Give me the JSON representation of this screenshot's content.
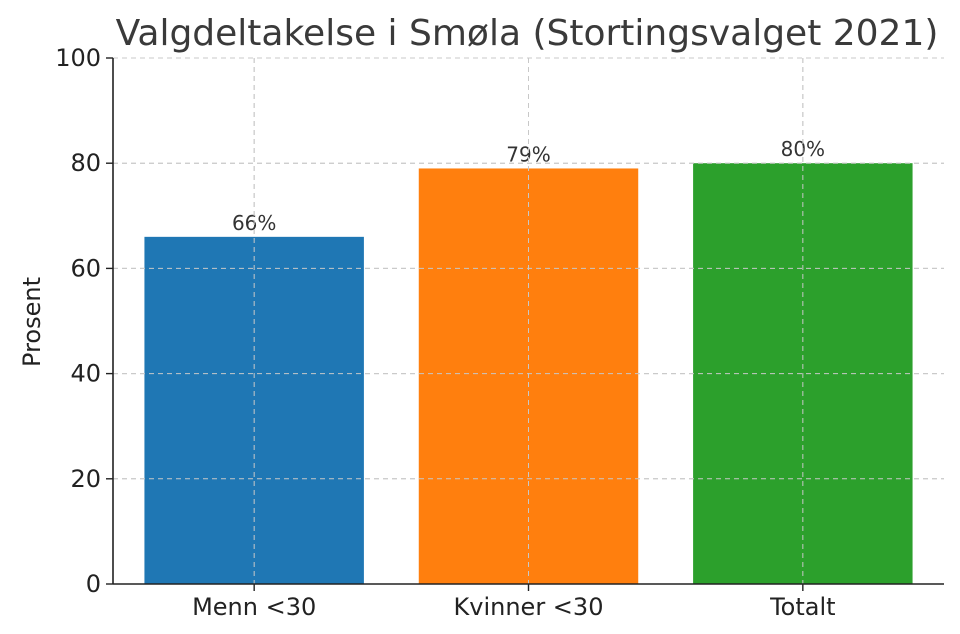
{
  "chart_data": {
    "type": "bar",
    "title": "Valgdeltakelse i Smøla (Stortingsvalget 2021)",
    "xlabel": "",
    "ylabel": "Prosent",
    "categories": [
      "Menn <30",
      "Kvinner <30",
      "Totalt"
    ],
    "values": [
      66,
      79,
      80
    ],
    "data_labels": [
      "66%",
      "79%",
      "80%"
    ],
    "colors": [
      "#1f77b4",
      "#ff7f0e",
      "#2ca02c"
    ],
    "ylim": [
      0,
      100
    ],
    "yticks": [
      0,
      20,
      40,
      60,
      80,
      100
    ],
    "ytick_labels": [
      "0",
      "20",
      "40",
      "60",
      "80",
      "100"
    ],
    "grid": true,
    "legend": "none"
  }
}
